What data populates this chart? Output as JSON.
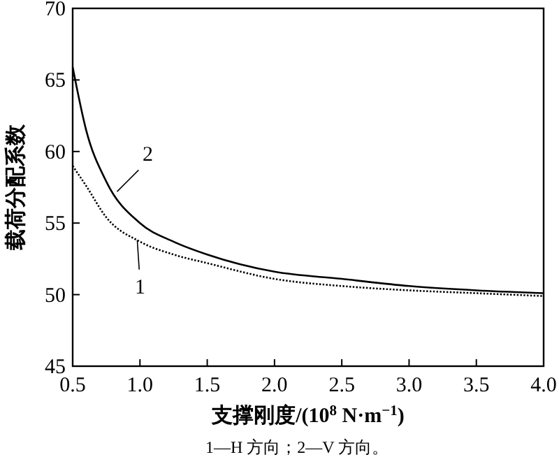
{
  "chart_data": {
    "type": "line",
    "xlabel": "支撑刚度/(10$^{8}$ N·m$^{−1}$)",
    "ylabel": "载荷分配系数",
    "x": [
      0.5,
      0.6,
      0.75,
      1.0,
      1.25,
      1.5,
      2.0,
      2.5,
      3.0,
      3.5,
      4.0
    ],
    "series": [
      {
        "color": "#000000",
        "line_style": "dotted",
        "values": [
          59.0,
          57.6,
          55.4,
          53.7,
          52.8,
          52.2,
          51.1,
          50.6,
          50.3,
          50.1,
          49.9
        ]
      },
      {
        "color": "#000000",
        "line_style": "solid",
        "values": [
          65.9,
          61.5,
          57.9,
          55.0,
          53.7,
          52.8,
          51.6,
          51.1,
          50.6,
          50.3,
          50.1
        ]
      }
    ],
    "xlim": [
      0.5,
      4.0
    ],
    "xticks": [
      0.5,
      {
        "value": 1,
        "label": "1.0"
      },
      1.5,
      {
        "value": 2,
        "label": "2.0"
      },
      2.5,
      {
        "value": 3,
        "label": "3.0"
      },
      3.5,
      {
        "value": 4,
        "label": "4.0"
      }
    ],
    "ylim": [
      45,
      70
    ],
    "yticks": [
      45,
      50,
      55,
      60,
      65,
      70
    ],
    "grid": false,
    "annotations": [
      {
        "text": "2",
        "x": 0.83,
        "y": 57.2
      },
      {
        "text": "1",
        "x": 0.98,
        "y": 53.8
      },
      "1—H 方向；2—V 方向。"
    ]
  }
}
